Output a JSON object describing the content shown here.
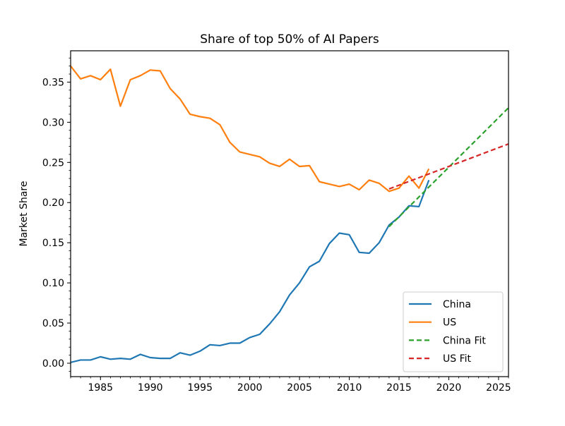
{
  "chart_data": {
    "type": "line",
    "title": "Share of top 50% of AI Papers",
    "xlabel": "",
    "ylabel": "Market Share",
    "xlim": [
      1982,
      2026
    ],
    "ylim": [
      -0.0167,
      0.389
    ],
    "xticks": [
      1985,
      1990,
      1995,
      2000,
      2005,
      2010,
      2015,
      2020,
      2025
    ],
    "yticks": [
      "0.00",
      "0.05",
      "0.10",
      "0.15",
      "0.20",
      "0.25",
      "0.30",
      "0.35"
    ],
    "grid": false,
    "legend_position": "lower-right",
    "x": [
      1982,
      1983,
      1984,
      1985,
      1986,
      1987,
      1988,
      1989,
      1990,
      1991,
      1992,
      1993,
      1994,
      1995,
      1996,
      1997,
      1998,
      1999,
      2000,
      2001,
      2002,
      2003,
      2004,
      2005,
      2006,
      2007,
      2008,
      2009,
      2010,
      2011,
      2012,
      2013,
      2014,
      2015,
      2016,
      2017,
      2018
    ],
    "series": [
      {
        "name": "China",
        "style": "solid",
        "color": "#1f77b4",
        "values": [
          0.001,
          0.004,
          0.004,
          0.008,
          0.005,
          0.006,
          0.005,
          0.011,
          0.007,
          0.006,
          0.006,
          0.013,
          0.01,
          0.015,
          0.023,
          0.022,
          0.025,
          0.025,
          0.032,
          0.036,
          0.049,
          0.064,
          0.085,
          0.1,
          0.12,
          0.127,
          0.149,
          0.162,
          0.16,
          0.138,
          0.137,
          0.15,
          0.172,
          0.182,
          0.196,
          0.195,
          0.228
        ]
      },
      {
        "name": "US",
        "style": "solid",
        "color": "#ff7f0e",
        "values": [
          0.37,
          0.354,
          0.358,
          0.353,
          0.366,
          0.32,
          0.353,
          0.358,
          0.365,
          0.364,
          0.342,
          0.329,
          0.31,
          0.307,
          0.305,
          0.297,
          0.275,
          0.263,
          0.26,
          0.257,
          0.249,
          0.245,
          0.254,
          0.245,
          0.246,
          0.226,
          0.223,
          0.22,
          0.223,
          0.216,
          0.228,
          0.224,
          0.214,
          0.218,
          0.233,
          0.218,
          0.242
        ]
      },
      {
        "name": "China Fit",
        "style": "dashed",
        "color": "#2ca02c",
        "fit_x": [
          2014,
          2026
        ],
        "fit_values": [
          0.17,
          0.318
        ]
      },
      {
        "name": "US Fit",
        "style": "dashed",
        "color": "#d62728",
        "fit_x": [
          2014,
          2026
        ],
        "fit_values": [
          0.217,
          0.273
        ]
      }
    ]
  }
}
